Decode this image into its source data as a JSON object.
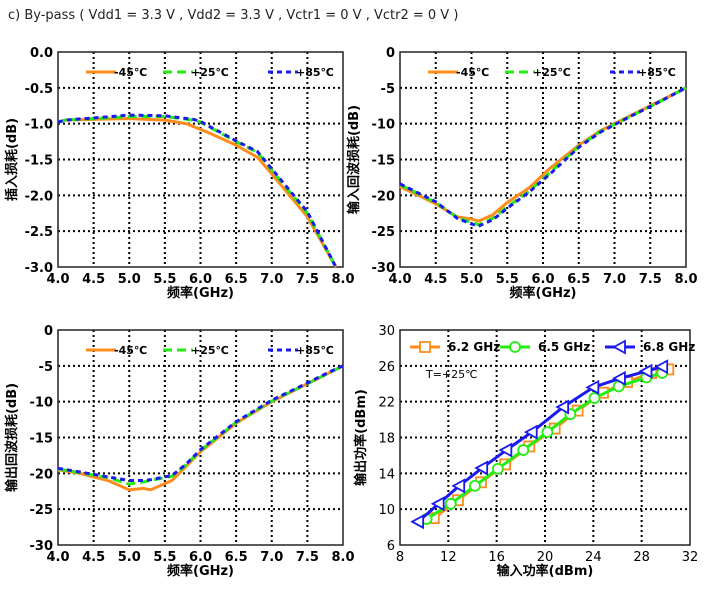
{
  "title": "c) By-pass ( Vdd1 = 3.3 V , Vdd2 = 3.3 V , Vctr1 = 0 V , Vctr2 = 0 V )",
  "colors": {
    "minus45": "#ff8c1a",
    "plus25": "#22ee11",
    "plus85": "#1a1aee"
  },
  "chart_data": [
    {
      "type": "line",
      "title": "",
      "xlabel": "频率(GHz)",
      "ylabel": "插入损耗(dB)",
      "xlim": [
        4.0,
        8.0
      ],
      "ylim": [
        -3.0,
        0.0
      ],
      "grid": true,
      "legend": "top",
      "xticks": [
        "4.0",
        "4.5",
        "5.0",
        "5.5",
        "6.0",
        "6.5",
        "7.0",
        "7.5",
        "8.0"
      ],
      "yticks": [
        "0.0",
        "-0.5",
        "-1.0",
        "-1.5",
        "-2.0",
        "-2.5",
        "-3.0"
      ],
      "series": [
        {
          "name": "-45℃",
          "x": [
            4.0,
            4.1,
            4.5,
            5.0,
            5.5,
            5.8,
            6.0,
            6.1,
            6.5,
            6.8,
            7.0,
            7.5,
            7.9
          ],
          "y": [
            -0.98,
            -0.95,
            -0.94,
            -0.93,
            -0.95,
            -1.0,
            -1.08,
            -1.12,
            -1.3,
            -1.47,
            -1.7,
            -2.3,
            -3.0
          ]
        },
        {
          "name": "+25℃",
          "x": [
            4.0,
            4.1,
            4.5,
            5.0,
            5.5,
            5.9,
            6.0,
            6.5,
            6.8,
            7.0,
            7.5,
            7.9
          ],
          "y": [
            -0.98,
            -0.95,
            -0.93,
            -0.9,
            -0.9,
            -0.95,
            -0.98,
            -1.25,
            -1.4,
            -1.65,
            -2.25,
            -3.0
          ]
        },
        {
          "name": "+85℃",
          "x": [
            4.0,
            4.1,
            4.5,
            5.0,
            5.5,
            5.9,
            6.0,
            6.5,
            6.8,
            7.0,
            7.5,
            7.9
          ],
          "y": [
            -0.98,
            -0.95,
            -0.92,
            -0.88,
            -0.89,
            -0.94,
            -0.97,
            -1.24,
            -1.39,
            -1.63,
            -2.23,
            -3.0
          ]
        }
      ]
    },
    {
      "type": "line",
      "title": "",
      "xlabel": "频率(GHz)",
      "ylabel": "输入回波损耗(dB)",
      "xlim": [
        4.0,
        8.0
      ],
      "ylim": [
        -30,
        0
      ],
      "grid": true,
      "legend": "top",
      "xticks": [
        "4.0",
        "4.5",
        "5.0",
        "5.5",
        "6.0",
        "6.5",
        "7.0",
        "7.5",
        "8.0"
      ],
      "yticks": [
        "0",
        "-5",
        "-10",
        "-15",
        "-20",
        "-25",
        "-30"
      ],
      "series": [
        {
          "name": "-45℃",
          "x": [
            4.0,
            4.3,
            4.5,
            4.8,
            5.0,
            5.1,
            5.3,
            5.5,
            5.8,
            6.1,
            6.5,
            6.8,
            7.2,
            7.6,
            8.0
          ],
          "y": [
            -18.8,
            -20.2,
            -21.2,
            -23.0,
            -23.3,
            -23.6,
            -22.7,
            -21.0,
            -19.0,
            -16.2,
            -13.0,
            -11.0,
            -9.0,
            -7.0,
            -5.0
          ]
        },
        {
          "name": "+25℃",
          "x": [
            4.0,
            4.3,
            4.5,
            4.8,
            5.0,
            5.1,
            5.3,
            5.5,
            5.8,
            6.1,
            6.5,
            6.8,
            7.2,
            7.6,
            8.0
          ],
          "y": [
            -18.5,
            -20.0,
            -21.0,
            -23.1,
            -23.8,
            -24.1,
            -23.2,
            -21.6,
            -19.5,
            -16.8,
            -13.2,
            -11.1,
            -9.1,
            -7.1,
            -5.0
          ]
        },
        {
          "name": "+85℃",
          "x": [
            4.0,
            4.3,
            4.5,
            4.8,
            5.0,
            5.1,
            5.3,
            5.5,
            5.8,
            6.1,
            6.5,
            6.8,
            7.2,
            7.6,
            8.0
          ],
          "y": [
            -18.4,
            -19.9,
            -20.9,
            -23.2,
            -24.0,
            -24.3,
            -23.4,
            -21.8,
            -19.6,
            -17.0,
            -13.3,
            -11.2,
            -9.1,
            -7.1,
            -5.0
          ]
        }
      ]
    },
    {
      "type": "line",
      "title": "",
      "xlabel": "频率(GHz)",
      "ylabel": "输出回波损耗(dB)",
      "xlim": [
        4.0,
        8.0
      ],
      "ylim": [
        -30,
        0
      ],
      "grid": true,
      "legend": "top",
      "xticks": [
        "4.0",
        "4.5",
        "5.0",
        "5.5",
        "6.0",
        "6.5",
        "7.0",
        "7.5",
        "8.0"
      ],
      "yticks": [
        "0",
        "-5",
        "-10",
        "-15",
        "-20",
        "-25",
        "-30"
      ],
      "series": [
        {
          "name": "-45℃",
          "x": [
            4.0,
            4.3,
            4.7,
            5.0,
            5.2,
            5.3,
            5.6,
            5.8,
            6.0,
            6.5,
            7.0,
            7.5,
            7.8,
            8.0
          ],
          "y": [
            -19.5,
            -20.0,
            -21.0,
            -22.3,
            -22.1,
            -22.3,
            -21.0,
            -19.0,
            -17.0,
            -13.0,
            -10.0,
            -7.5,
            -6.0,
            -5.0
          ]
        },
        {
          "name": "+25℃",
          "x": [
            4.0,
            4.3,
            4.7,
            5.0,
            5.2,
            5.3,
            5.6,
            5.8,
            6.0,
            6.5,
            7.0,
            7.5,
            7.8,
            8.0
          ],
          "y": [
            -19.4,
            -19.9,
            -20.6,
            -21.5,
            -21.2,
            -21.0,
            -20.4,
            -18.8,
            -16.8,
            -12.9,
            -9.9,
            -7.5,
            -6.0,
            -5.0
          ]
        },
        {
          "name": "+85℃",
          "x": [
            4.0,
            4.3,
            4.7,
            5.0,
            5.2,
            5.3,
            5.6,
            5.8,
            6.0,
            6.5,
            7.0,
            7.5,
            7.8,
            8.0
          ],
          "y": [
            -19.3,
            -19.8,
            -20.5,
            -21.0,
            -21.0,
            -20.9,
            -20.3,
            -18.7,
            -16.7,
            -12.8,
            -9.8,
            -7.4,
            -5.9,
            -5.0
          ]
        }
      ]
    },
    {
      "type": "line",
      "title": "",
      "xlabel": "输入功率(dBm)",
      "ylabel": "输出功率(dBm)",
      "xlim": [
        8,
        32
      ],
      "ylim": [
        6,
        30
      ],
      "grid": true,
      "legend": "top",
      "annotation": "T=+25℃",
      "xticks": [
        "8",
        "12",
        "16",
        "20",
        "24",
        "28",
        "32"
      ],
      "yticks": [
        "30",
        "26",
        "22",
        "18",
        "14",
        "10",
        "6"
      ],
      "series": [
        {
          "name": "6.2 GHz",
          "marker": "square",
          "x": [
            10.8,
            12.8,
            14.7,
            16.7,
            18.7,
            20.8,
            22.7,
            24.8,
            26.8,
            28.8,
            30.2
          ],
          "y": [
            9.0,
            11.0,
            13.0,
            15.0,
            17.0,
            19.0,
            21.0,
            23.0,
            24.2,
            25.2,
            25.6
          ]
        },
        {
          "name": "6.5 GHz",
          "marker": "circle",
          "x": [
            10.2,
            12.2,
            14.2,
            16.1,
            18.2,
            20.2,
            22.1,
            24.1,
            26.1,
            28.4,
            29.7
          ],
          "y": [
            8.9,
            10.6,
            12.6,
            14.5,
            16.6,
            18.6,
            20.6,
            22.4,
            23.7,
            24.7,
            25.2
          ]
        },
        {
          "name": "6.8 GHz",
          "marker": "triangle-left",
          "x": [
            9.5,
            11.2,
            12.9,
            14.8,
            16.8,
            18.9,
            21.5,
            24.0,
            26.2,
            28.4,
            29.7
          ],
          "y": [
            8.6,
            10.6,
            12.6,
            14.6,
            16.6,
            18.6,
            21.4,
            23.6,
            24.6,
            25.4,
            25.9
          ]
        }
      ]
    }
  ]
}
